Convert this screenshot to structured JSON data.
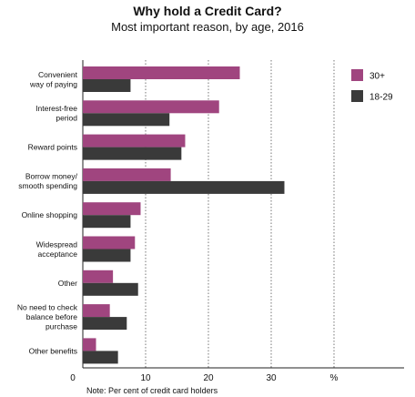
{
  "chart_data": {
    "type": "bar",
    "orientation": "horizontal",
    "title": "Why hold a Credit Card?",
    "subtitle": "Most important reason, by age, 2016",
    "categories": [
      [
        "Convenient",
        "way of paying"
      ],
      [
        "Interest-free",
        "period"
      ],
      [
        "Reward points"
      ],
      [
        "Borrow money/",
        "smooth spending"
      ],
      [
        "Online shopping"
      ],
      [
        "Widespread",
        "acceptance"
      ],
      [
        "Other"
      ],
      [
        "No need to check",
        "balance before",
        "purchase"
      ],
      [
        "Other benefits"
      ]
    ],
    "series": [
      {
        "name": "30+",
        "color": "#a0457f",
        "values": [
          25,
          21.7,
          16.3,
          14,
          9.2,
          8.3,
          4.8,
          4.3,
          2.1
        ]
      },
      {
        "name": "18-29",
        "color": "#3a3a3a",
        "values": [
          7.6,
          13.8,
          15.7,
          32.1,
          7.6,
          7.6,
          8.8,
          7.0,
          5.6
        ]
      }
    ],
    "x_ticks": [
      "0",
      "10",
      "20",
      "30"
    ],
    "x_unit_label": "%",
    "xlim": [
      0,
      50
    ],
    "grid": "vertical dotted",
    "legend_position": "right",
    "note": "Note: Per cent of credit card holders"
  }
}
